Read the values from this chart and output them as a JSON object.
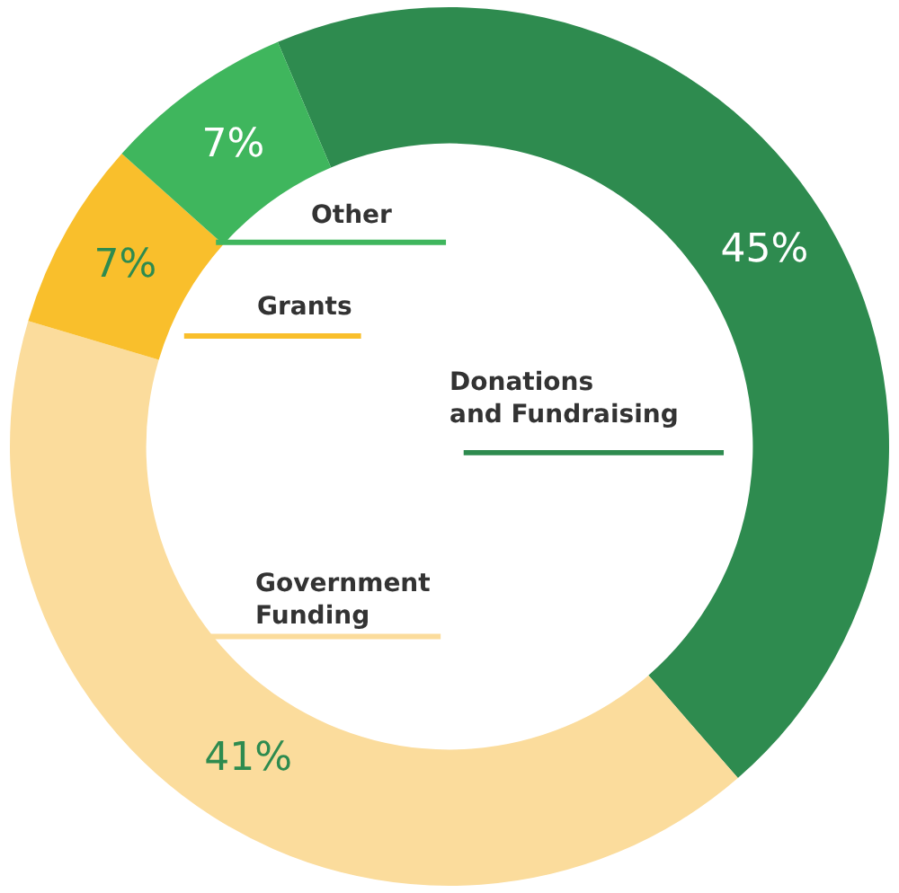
{
  "chart_data": {
    "type": "donut",
    "categories": [
      "Donations and Fundraising",
      "Government Funding",
      "Grants",
      "Other"
    ],
    "values": [
      45,
      41,
      7,
      7
    ],
    "value_labels": [
      "45%",
      "41%",
      "7%",
      "7%"
    ],
    "colors": [
      "#2e8b4f",
      "#fbdc9c",
      "#f9bf2c",
      "#3fb65d"
    ],
    "legend": false
  }
}
